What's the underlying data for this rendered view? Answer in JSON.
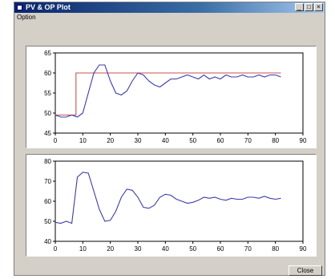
{
  "window": {
    "title": "PV & OP Plot",
    "buttons": {
      "minimize": "_",
      "maximize": "□",
      "close": "×"
    }
  },
  "menu": {
    "items": [
      "Option"
    ]
  },
  "close_button": {
    "label": "Close"
  },
  "colors": {
    "pv_line": "#3c3caa",
    "sp_line": "#c85050"
  },
  "chart_data": [
    {
      "type": "line",
      "xlim": [
        0,
        90
      ],
      "ylim": [
        45,
        65
      ],
      "xticks": [
        0,
        10,
        20,
        30,
        40,
        50,
        60,
        70,
        80,
        90
      ],
      "yticks": [
        45,
        50,
        55,
        60,
        65
      ],
      "series": [
        {
          "x": [
            0,
            7.5,
            7.5,
            82
          ],
          "y": [
            49.5,
            49.5,
            60,
            60
          ]
        },
        {
          "x": [
            0,
            2,
            4,
            6,
            8,
            10,
            12,
            14,
            16,
            18,
            20,
            22,
            24,
            26,
            28,
            30,
            32,
            34,
            36,
            38,
            40,
            42,
            44,
            46,
            48,
            50,
            52,
            54,
            56,
            58,
            60,
            62,
            64,
            66,
            68,
            70,
            72,
            74,
            76,
            78,
            80,
            82
          ],
          "y": [
            49.5,
            49,
            49,
            49.5,
            49,
            50,
            55,
            60,
            62,
            62,
            58,
            55,
            54.5,
            55.5,
            58,
            60,
            59.5,
            58,
            57,
            56.5,
            57.5,
            58.5,
            58.5,
            59,
            59.5,
            59,
            58.5,
            59.5,
            58.5,
            59,
            58.5,
            59.5,
            59,
            59,
            59.5,
            59,
            59,
            59.5,
            59,
            59.5,
            59.5,
            59
          ]
        }
      ]
    },
    {
      "type": "line",
      "xlim": [
        0,
        90
      ],
      "ylim": [
        40,
        80
      ],
      "xticks": [
        0,
        10,
        20,
        30,
        40,
        50,
        60,
        70,
        80,
        90
      ],
      "yticks": [
        40,
        50,
        60,
        70,
        80
      ],
      "series": [
        {
          "x": [
            0,
            2,
            4,
            6,
            8,
            10,
            12,
            14,
            16,
            18,
            20,
            22,
            24,
            26,
            28,
            30,
            32,
            34,
            36,
            38,
            40,
            42,
            44,
            46,
            48,
            50,
            52,
            54,
            56,
            58,
            60,
            62,
            64,
            66,
            68,
            70,
            72,
            74,
            76,
            78,
            80,
            82
          ],
          "y": [
            49.5,
            49,
            50,
            49,
            72,
            74.5,
            74,
            65,
            56,
            50,
            50.5,
            55,
            62,
            66,
            65.5,
            62,
            57,
            56.5,
            58,
            62,
            63.5,
            63,
            61,
            60,
            59,
            59.5,
            60.5,
            62,
            61.5,
            62,
            61,
            60.5,
            61.5,
            61,
            61,
            62,
            62,
            61.5,
            62.5,
            61.5,
            61,
            61.5
          ]
        }
      ]
    }
  ]
}
